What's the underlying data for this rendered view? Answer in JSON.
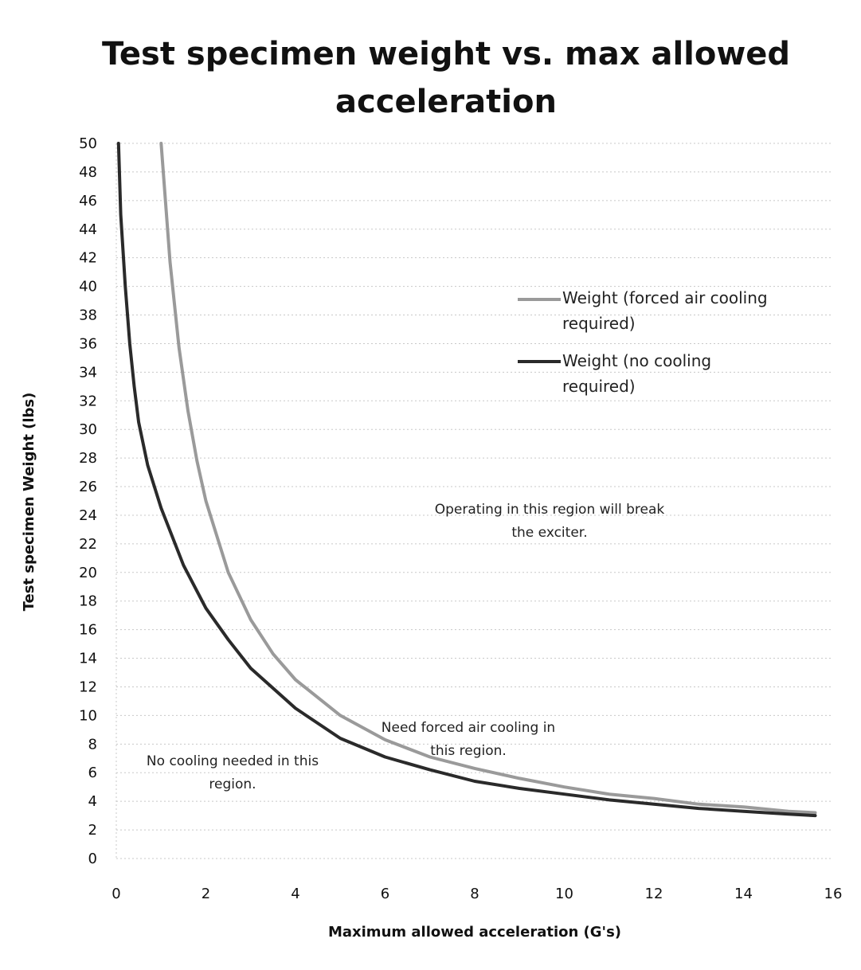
{
  "chart_data": {
    "type": "line",
    "title": "Test specimen weight vs. max allowed acceleration",
    "xlabel": "Maximum allowed acceleration (G's)",
    "ylabel": "Test specimen Weight (lbs)",
    "xlim": [
      0,
      16
    ],
    "ylim": [
      0,
      50
    ],
    "xticks": [
      "0",
      "2",
      "4",
      "6",
      "8",
      "10",
      "12",
      "14",
      "16"
    ],
    "yticks": [
      "0",
      "2",
      "4",
      "6",
      "8",
      "10",
      "12",
      "14",
      "16",
      "18",
      "20",
      "22",
      "24",
      "26",
      "28",
      "30",
      "32",
      "34",
      "36",
      "38",
      "40",
      "42",
      "44",
      "46",
      "48",
      "50"
    ],
    "grid": true,
    "legend_position": "right",
    "series": [
      {
        "name": "Weight (forced air cooling required)",
        "color": "#9a9a9a",
        "x": [
          1.0,
          1.2,
          1.4,
          1.6,
          1.8,
          2.0,
          2.5,
          3.0,
          3.5,
          4.0,
          5.0,
          6.0,
          7.0,
          8.0,
          9.0,
          10.0,
          11.0,
          12.0,
          13.0,
          14.0,
          15.0,
          15.6
        ],
        "y": [
          50,
          41.7,
          35.7,
          31.3,
          27.8,
          25,
          20,
          16.7,
          14.3,
          12.5,
          10,
          8.3,
          7.1,
          6.3,
          5.6,
          5,
          4.5,
          4.2,
          3.8,
          3.6,
          3.3,
          3.2
        ]
      },
      {
        "name": "Weight (no cooling required)",
        "color": "#2a2a2a",
        "x": [
          0.05,
          0.1,
          0.2,
          0.3,
          0.4,
          0.5,
          0.7,
          1.0,
          1.5,
          2.0,
          2.5,
          3.0,
          4.0,
          5.0,
          6.0,
          7.0,
          8.0,
          9.0,
          10.0,
          11.0,
          12.0,
          13.0,
          14.0,
          15.0,
          15.6
        ],
        "y": [
          50,
          45,
          40,
          36,
          33,
          30.5,
          27.5,
          24.5,
          20.5,
          17.5,
          15.3,
          13.3,
          10.5,
          8.4,
          7.1,
          6.2,
          5.4,
          4.9,
          4.5,
          4.1,
          3.8,
          3.5,
          3.3,
          3.1,
          3.0
        ]
      }
    ],
    "annotations": [
      "Operating in this region will break the exciter.",
      "Need forced air cooling in this region.",
      "No cooling needed in this region."
    ]
  }
}
